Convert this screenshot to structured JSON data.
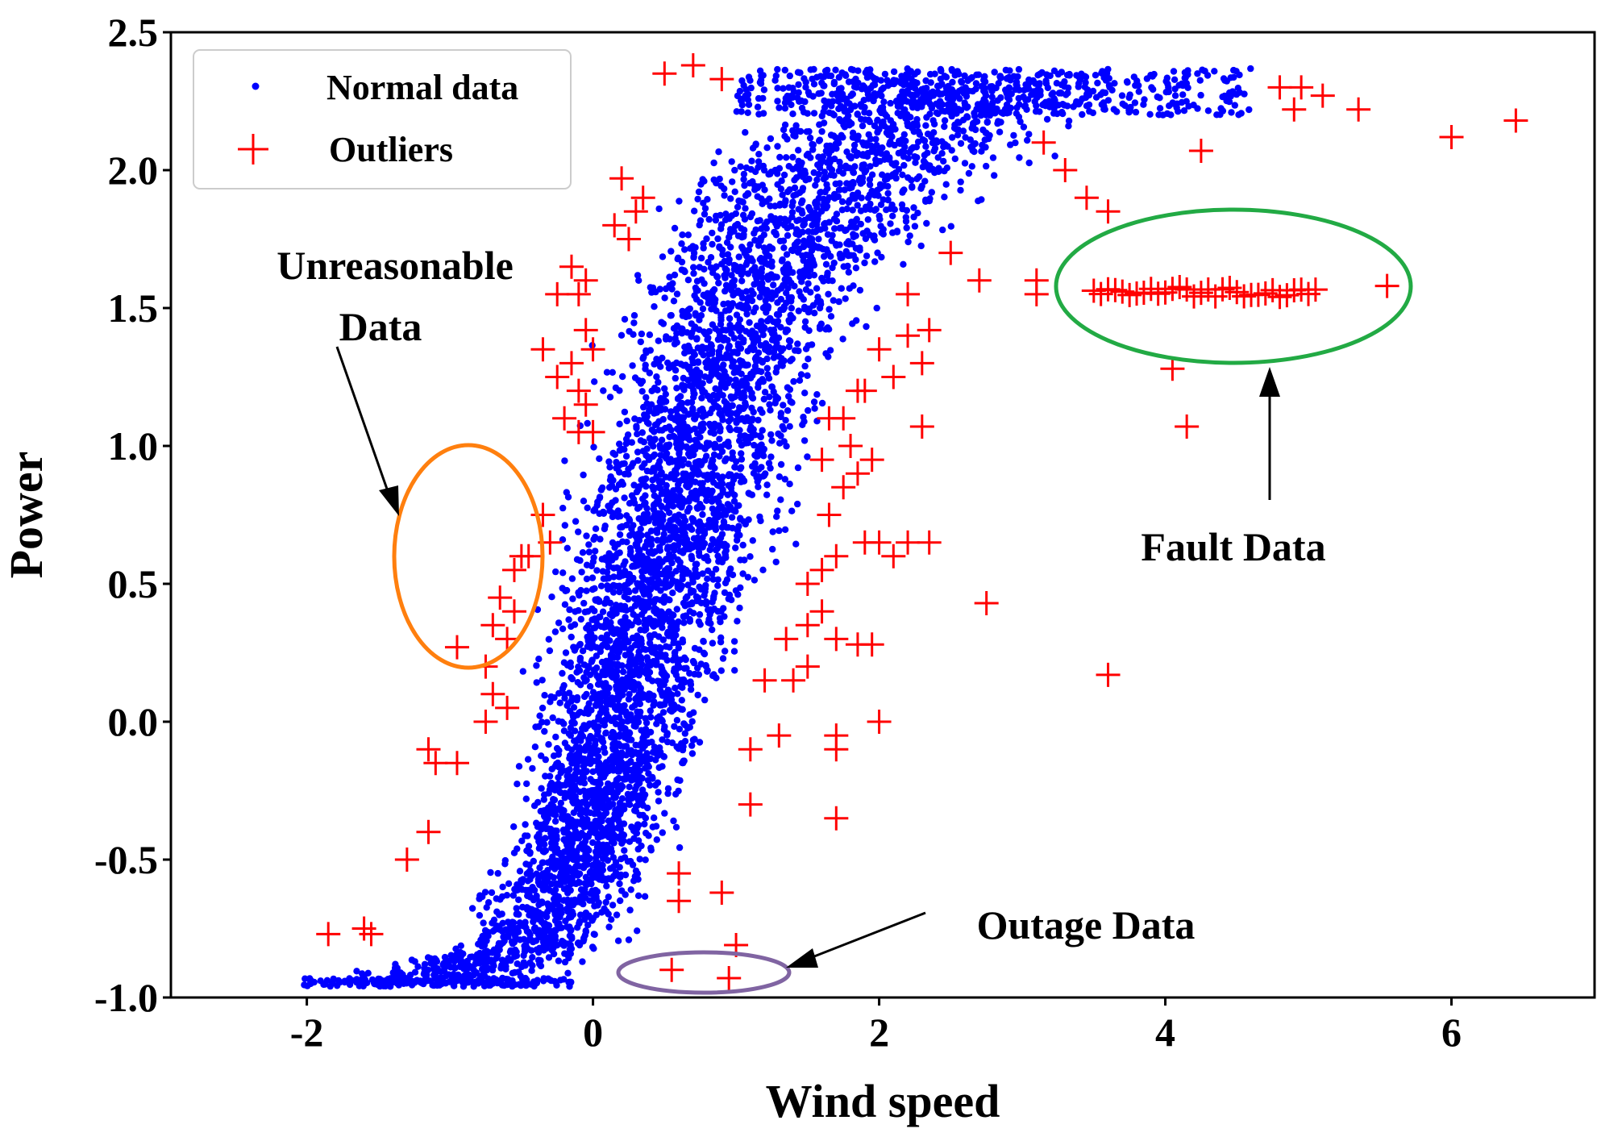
{
  "chart_data": {
    "type": "scatter",
    "xlabel": "Wind speed",
    "ylabel": "Power",
    "xlim": [
      -2.95,
      7.0
    ],
    "ylim": [
      -1.0,
      2.5
    ],
    "xticks": [
      -2,
      0,
      2,
      4,
      6
    ],
    "xtick_labels": [
      "-2",
      "0",
      "2",
      "4",
      "6"
    ],
    "yticks": [
      -1.0,
      -0.5,
      0.0,
      0.5,
      1.0,
      1.5,
      2.0,
      2.5
    ],
    "ytick_labels": [
      "-1.0",
      "-0.5",
      "0.0",
      "0.5",
      "1.0",
      "1.5",
      "2.0",
      "2.5"
    ],
    "legend": {
      "position": "top-left",
      "entries": [
        {
          "label": "Normal data",
          "marker": "dot",
          "color": "#0000ff"
        },
        {
          "label": "Outliers",
          "marker": "plus",
          "color": "#ff0000"
        }
      ]
    },
    "series": [
      {
        "name": "Normal data",
        "color": "#0000ff",
        "marker": "dot",
        "distribution_note": "dense band of points along the power curve",
        "band": [
          {
            "y": -0.95,
            "x_min": -2.05,
            "x_max": -0.2
          },
          {
            "y": -0.8,
            "x_min": -1.2,
            "x_max": 0.35
          },
          {
            "y": -0.5,
            "x_min": -0.8,
            "x_max": 0.6
          },
          {
            "y": 0.0,
            "x_min": -0.6,
            "x_max": 0.95
          },
          {
            "y": 0.5,
            "x_min": -0.45,
            "x_max": 1.35
          },
          {
            "y": 1.0,
            "x_min": -0.25,
            "x_max": 1.7
          },
          {
            "y": 1.5,
            "x_min": 0.0,
            "x_max": 2.1
          },
          {
            "y": 2.0,
            "x_min": 0.4,
            "x_max": 3.2
          },
          {
            "y": 2.35,
            "x_min": 1.0,
            "x_max": 4.6
          }
        ]
      },
      {
        "name": "Outliers",
        "color": "#ff0000",
        "marker": "plus",
        "points": [
          [
            0.5,
            2.35
          ],
          [
            0.7,
            2.38
          ],
          [
            0.9,
            2.33
          ],
          [
            0.2,
            1.97
          ],
          [
            0.3,
            1.85
          ],
          [
            0.35,
            1.9
          ],
          [
            0.15,
            1.8
          ],
          [
            0.25,
            1.75
          ],
          [
            -0.15,
            1.65
          ],
          [
            -0.05,
            1.6
          ],
          [
            -0.25,
            1.55
          ],
          [
            -0.1,
            1.55
          ],
          [
            -0.05,
            1.42
          ],
          [
            0.0,
            1.35
          ],
          [
            -0.15,
            1.3
          ],
          [
            -0.35,
            1.35
          ],
          [
            -0.25,
            1.25
          ],
          [
            -0.1,
            1.2
          ],
          [
            -0.05,
            1.15
          ],
          [
            -0.2,
            1.1
          ],
          [
            -0.1,
            1.05
          ],
          [
            0.0,
            1.05
          ],
          [
            -0.35,
            0.75
          ],
          [
            -0.3,
            0.65
          ],
          [
            -0.45,
            0.6
          ],
          [
            -0.55,
            0.55
          ],
          [
            -0.5,
            0.6
          ],
          [
            -0.65,
            0.45
          ],
          [
            -0.55,
            0.4
          ],
          [
            -0.7,
            0.35
          ],
          [
            -0.6,
            0.3
          ],
          [
            -0.95,
            0.27
          ],
          [
            -0.75,
            0.2
          ],
          [
            -0.7,
            0.1
          ],
          [
            -0.6,
            0.05
          ],
          [
            -0.75,
            0.0
          ],
          [
            -1.15,
            -0.1
          ],
          [
            -1.1,
            -0.15
          ],
          [
            -0.95,
            -0.15
          ],
          [
            -1.15,
            -0.4
          ],
          [
            -1.3,
            -0.5
          ],
          [
            -1.85,
            -0.77
          ],
          [
            -1.55,
            -0.77
          ],
          [
            -1.6,
            -0.75
          ],
          [
            0.55,
            -0.9
          ],
          [
            0.95,
            -0.93
          ],
          [
            1.0,
            -0.81
          ],
          [
            0.6,
            -0.55
          ],
          [
            0.6,
            -0.65
          ],
          [
            0.9,
            -0.62
          ],
          [
            1.1,
            -0.3
          ],
          [
            1.7,
            -0.35
          ],
          [
            1.1,
            -0.1
          ],
          [
            1.3,
            -0.05
          ],
          [
            1.7,
            -0.05
          ],
          [
            1.7,
            -0.1
          ],
          [
            2.0,
            0.0
          ],
          [
            1.2,
            0.15
          ],
          [
            1.4,
            0.15
          ],
          [
            1.5,
            0.2
          ],
          [
            1.35,
            0.3
          ],
          [
            1.5,
            0.35
          ],
          [
            1.6,
            0.4
          ],
          [
            1.7,
            0.3
          ],
          [
            1.85,
            0.28
          ],
          [
            1.95,
            0.28
          ],
          [
            1.5,
            0.5
          ],
          [
            1.6,
            0.55
          ],
          [
            1.7,
            0.6
          ],
          [
            1.9,
            0.65
          ],
          [
            2.0,
            0.65
          ],
          [
            2.1,
            0.6
          ],
          [
            2.2,
            0.65
          ],
          [
            2.35,
            0.65
          ],
          [
            2.75,
            0.43
          ],
          [
            3.6,
            0.17
          ],
          [
            1.65,
            0.75
          ],
          [
            1.75,
            0.85
          ],
          [
            1.85,
            0.9
          ],
          [
            1.95,
            0.95
          ],
          [
            1.6,
            0.95
          ],
          [
            1.8,
            1.0
          ],
          [
            1.75,
            1.1
          ],
          [
            1.85,
            1.2
          ],
          [
            1.9,
            1.2
          ],
          [
            1.65,
            1.1
          ],
          [
            2.3,
            1.07
          ],
          [
            2.1,
            1.25
          ],
          [
            2.0,
            1.35
          ],
          [
            2.2,
            1.4
          ],
          [
            2.35,
            1.42
          ],
          [
            2.3,
            1.3
          ],
          [
            2.2,
            1.55
          ],
          [
            2.5,
            1.7
          ],
          [
            2.7,
            1.6
          ],
          [
            3.15,
            2.1
          ],
          [
            3.3,
            2.0
          ],
          [
            3.45,
            1.9
          ],
          [
            3.6,
            1.85
          ],
          [
            3.1,
            1.55
          ],
          [
            3.1,
            1.6
          ],
          [
            4.05,
            1.28
          ],
          [
            4.15,
            1.07
          ],
          [
            4.25,
            2.07
          ],
          [
            4.8,
            2.3
          ],
          [
            4.95,
            2.3
          ],
          [
            5.1,
            2.27
          ],
          [
            5.35,
            2.22
          ],
          [
            4.9,
            2.22
          ],
          [
            6.0,
            2.12
          ],
          [
            6.45,
            2.18
          ],
          [
            5.55,
            1.58
          ]
        ],
        "cluster": {
          "label": "Fault Data",
          "y": 1.56,
          "x_from": 3.5,
          "x_to": 5.05
        }
      }
    ],
    "annotations": [
      {
        "text_lines": [
          "Unreasonable",
          "Data"
        ],
        "ellipse_color": "#ff7f0e",
        "target": {
          "x": -0.9,
          "y": 0.55
        }
      },
      {
        "text_lines": [
          "Fault Data"
        ],
        "ellipse_color": "#22aa44",
        "target": {
          "x": 4.3,
          "y": 1.56
        }
      },
      {
        "text_lines": [
          "Outage Data"
        ],
        "ellipse_color": "#8064a2",
        "target": {
          "x": 0.85,
          "y": -0.93
        }
      }
    ]
  }
}
